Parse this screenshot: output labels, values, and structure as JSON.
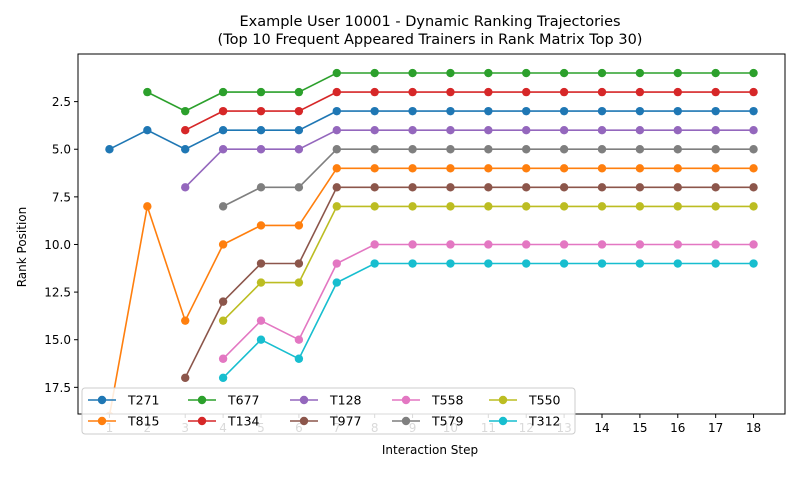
{
  "chart_data": {
    "type": "line",
    "title": "Example User 10001 - Dynamic Ranking Trajectories",
    "subtitle": "(Top 10 Frequent Appeared Trainers in Rank Matrix Top 30)",
    "xlabel": "Interaction Step",
    "ylabel": "Rank Position",
    "xlim": [
      0.17,
      18.83
    ],
    "ylim": [
      18.9,
      0.0
    ],
    "y_inverted": true,
    "x_ticks": [
      1,
      2,
      3,
      4,
      5,
      6,
      7,
      8,
      9,
      10,
      11,
      12,
      13,
      14,
      15,
      16,
      17,
      18
    ],
    "y_ticks": [
      2.5,
      5.0,
      7.5,
      10.0,
      12.5,
      15.0,
      17.5
    ],
    "y_tick_labels": [
      "2.5",
      "5.0",
      "7.5",
      "10.0",
      "12.5",
      "15.0",
      "17.5"
    ],
    "grid": false,
    "legend_position": "lower-left",
    "legend_columns": 5,
    "series": [
      {
        "name": "T271",
        "color": "#1f77b4",
        "x": [
          1,
          2,
          3,
          4,
          5,
          6,
          7,
          8,
          9,
          10,
          11,
          12,
          13,
          14,
          15,
          16,
          17,
          18
        ],
        "values": [
          5,
          4,
          5,
          4,
          4,
          4,
          3,
          3,
          3,
          3,
          3,
          3,
          3,
          3,
          3,
          3,
          3,
          3
        ]
      },
      {
        "name": "T815",
        "color": "#ff7f0e",
        "x": [
          1,
          2,
          3,
          4,
          5,
          6,
          7,
          8,
          9,
          10,
          11,
          12,
          13,
          14,
          15,
          16,
          17,
          18
        ],
        "values": [
          19,
          8,
          14,
          10,
          9,
          9,
          6,
          6,
          6,
          6,
          6,
          6,
          6,
          6,
          6,
          6,
          6,
          6
        ]
      },
      {
        "name": "T677",
        "color": "#2ca02c",
        "x": [
          2,
          3,
          4,
          5,
          6,
          7,
          8,
          9,
          10,
          11,
          12,
          13,
          14,
          15,
          16,
          17,
          18
        ],
        "values": [
          2,
          3,
          2,
          2,
          2,
          1,
          1,
          1,
          1,
          1,
          1,
          1,
          1,
          1,
          1,
          1,
          1
        ]
      },
      {
        "name": "T134",
        "color": "#d62728",
        "x": [
          3,
          4,
          5,
          6,
          7,
          8,
          9,
          10,
          11,
          12,
          13,
          14,
          15,
          16,
          17,
          18
        ],
        "values": [
          4,
          3,
          3,
          3,
          2,
          2,
          2,
          2,
          2,
          2,
          2,
          2,
          2,
          2,
          2,
          2
        ]
      },
      {
        "name": "T128",
        "color": "#9467bd",
        "x": [
          3,
          4,
          5,
          6,
          7,
          8,
          9,
          10,
          11,
          12,
          13,
          14,
          15,
          16,
          17,
          18
        ],
        "values": [
          7,
          5,
          5,
          5,
          4,
          4,
          4,
          4,
          4,
          4,
          4,
          4,
          4,
          4,
          4,
          4
        ]
      },
      {
        "name": "T977",
        "color": "#8c564b",
        "x": [
          3,
          4,
          5,
          6,
          7,
          8,
          9,
          10,
          11,
          12,
          13,
          14,
          15,
          16,
          17,
          18
        ],
        "values": [
          17,
          13,
          11,
          11,
          7,
          7,
          7,
          7,
          7,
          7,
          7,
          7,
          7,
          7,
          7,
          7
        ]
      },
      {
        "name": "T558",
        "color": "#e377c2",
        "x": [
          4,
          5,
          6,
          7,
          8,
          9,
          10,
          11,
          12,
          13,
          14,
          15,
          16,
          17,
          18
        ],
        "values": [
          16,
          14,
          15,
          11,
          10,
          10,
          10,
          10,
          10,
          10,
          10,
          10,
          10,
          10,
          10
        ]
      },
      {
        "name": "T579",
        "color": "#7f7f7f",
        "x": [
          4,
          5,
          6,
          7,
          8,
          9,
          10,
          11,
          12,
          13,
          14,
          15,
          16,
          17,
          18
        ],
        "values": [
          8,
          7,
          7,
          5,
          5,
          5,
          5,
          5,
          5,
          5,
          5,
          5,
          5,
          5,
          5
        ]
      },
      {
        "name": "T550",
        "color": "#bcbd22",
        "x": [
          4,
          5,
          6,
          7,
          8,
          9,
          10,
          11,
          12,
          13,
          14,
          15,
          16,
          17,
          18
        ],
        "values": [
          14,
          12,
          12,
          8,
          8,
          8,
          8,
          8,
          8,
          8,
          8,
          8,
          8,
          8,
          8
        ]
      },
      {
        "name": "T312",
        "color": "#17becf",
        "x": [
          4,
          5,
          6,
          7,
          8,
          9,
          10,
          11,
          12,
          13,
          14,
          15,
          16,
          17,
          18
        ],
        "values": [
          17,
          15,
          16,
          12,
          11,
          11,
          11,
          11,
          11,
          11,
          11,
          11,
          11,
          11,
          11
        ]
      }
    ]
  }
}
